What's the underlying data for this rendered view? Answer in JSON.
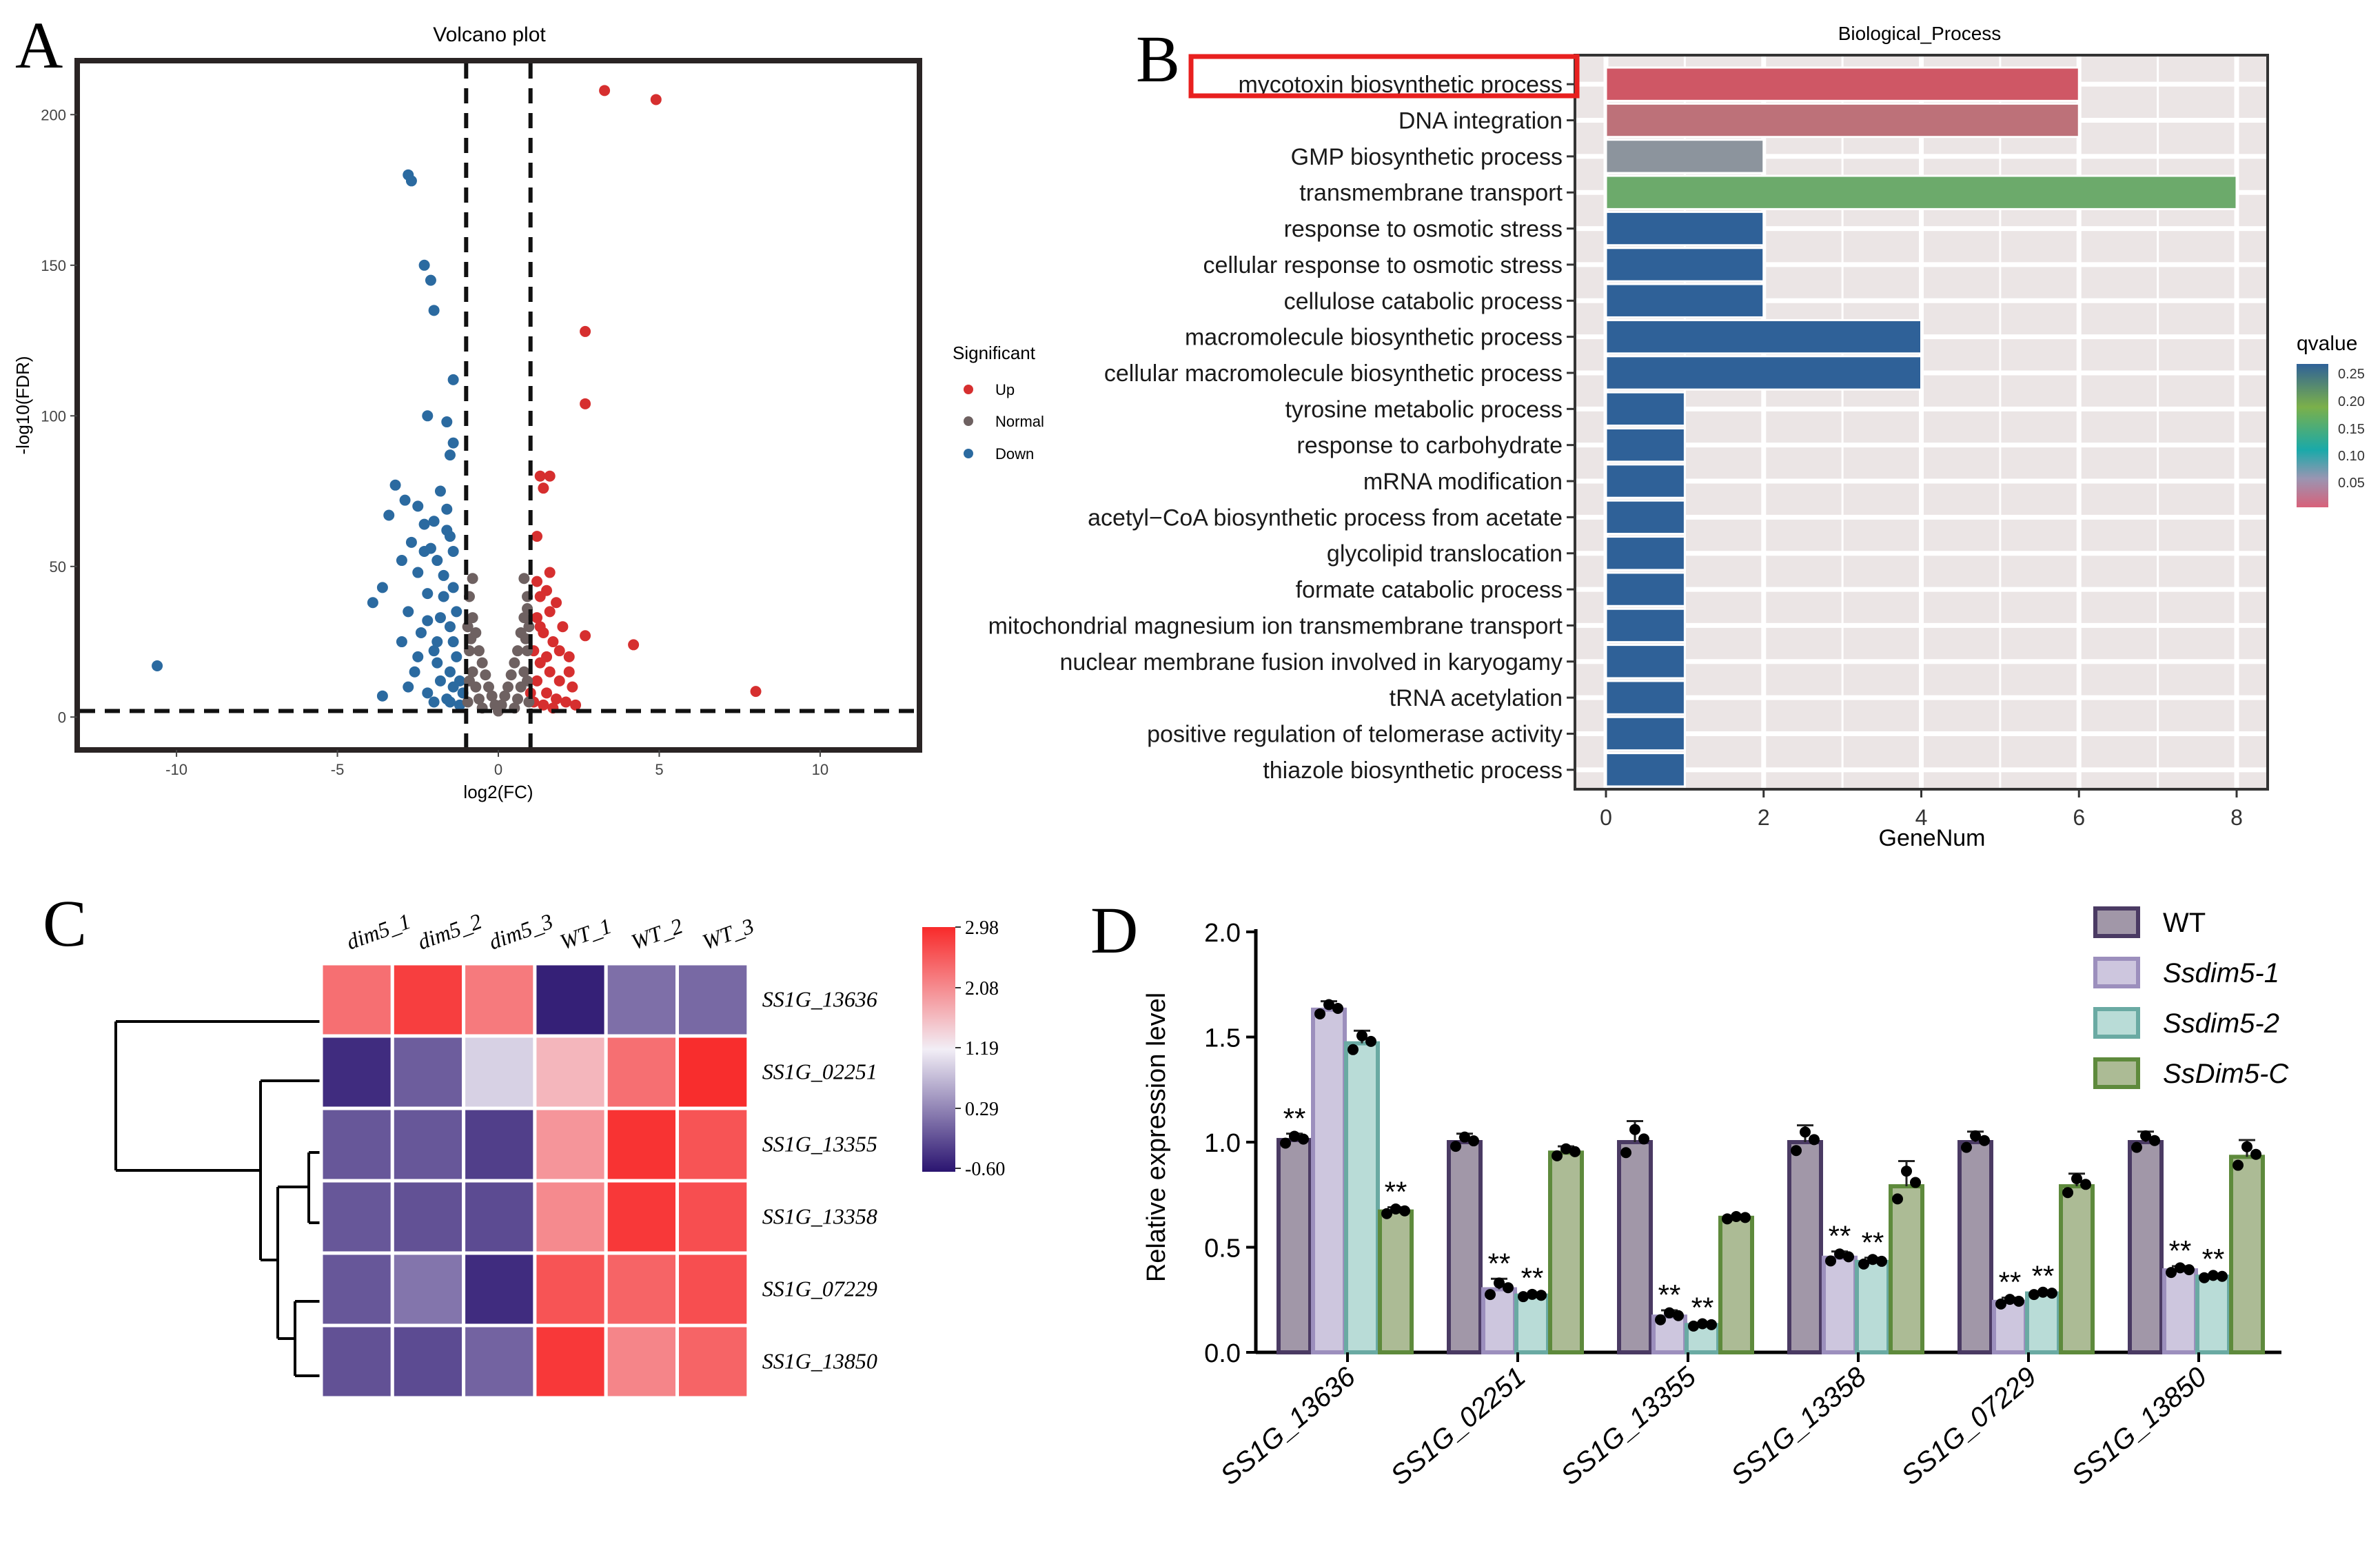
{
  "panels": [
    {
      "id": "A",
      "letter": "A",
      "title": "Volcano plot",
      "chart_data": {
        "type": "scatter",
        "title": "Volcano plot",
        "xlabel": "log2(FC)",
        "ylabel": "-log10(FDR)",
        "xlim": [
          -13,
          13
        ],
        "ylim": [
          -10,
          217
        ],
        "xticks": [
          -10,
          -5,
          0,
          5,
          10
        ],
        "yticks": [
          0,
          50,
          100,
          150,
          200
        ],
        "thresholds": {
          "x": [
            -1,
            1
          ],
          "y": 2
        },
        "legend": {
          "title": "Significant",
          "position": "right",
          "entries": [
            {
              "label": "Up",
              "color": "#d62f2f"
            },
            {
              "label": "Normal",
              "color": "#6e6161"
            },
            {
              "label": "Down",
              "color": "#2b6aa0"
            }
          ]
        },
        "series": [
          {
            "name": "Up",
            "color": "#d62f2f",
            "points": [
              [
                3.3,
                208
              ],
              [
                4.9,
                205
              ],
              [
                2.7,
                128
              ],
              [
                2.7,
                104
              ],
              [
                1.3,
                80
              ],
              [
                1.6,
                80
              ],
              [
                1.4,
                76
              ],
              [
                2.7,
                27
              ],
              [
                4.2,
                24
              ],
              [
                8,
                8.5
              ],
              [
                1.2,
                45
              ],
              [
                1.3,
                40
              ],
              [
                1.5,
                42
              ],
              [
                1.8,
                38
              ],
              [
                1.6,
                35
              ],
              [
                2.0,
                30
              ],
              [
                1.2,
                33
              ],
              [
                1.4,
                28
              ],
              [
                1.7,
                25
              ],
              [
                2.2,
                20
              ],
              [
                1.1,
                22
              ],
              [
                1.3,
                18
              ],
              [
                1.6,
                15
              ],
              [
                1.9,
                12
              ],
              [
                2.3,
                10
              ],
              [
                1.2,
                12
              ],
              [
                1.5,
                8
              ],
              [
                1.8,
                6
              ],
              [
                2.1,
                5
              ],
              [
                1.1,
                5
              ],
              [
                1.4,
                4
              ],
              [
                1.7,
                3
              ],
              [
                2.4,
                4
              ],
              [
                1.3,
                30
              ],
              [
                1.9,
                22
              ],
              [
                2.2,
                15
              ],
              [
                1.5,
                20
              ],
              [
                1.0,
                8
              ],
              [
                1.6,
                48
              ],
              [
                1.2,
                60
              ]
            ]
          },
          {
            "name": "Down",
            "color": "#2b6aa0",
            "points": [
              [
                -2.8,
                180
              ],
              [
                -2.7,
                178
              ],
              [
                -2.3,
                150
              ],
              [
                -2.1,
                145
              ],
              [
                -2.0,
                135
              ],
              [
                -1.4,
                112
              ],
              [
                -1.6,
                98
              ],
              [
                -2.2,
                100
              ],
              [
                -1.4,
                91
              ],
              [
                -1.5,
                87
              ],
              [
                -3.2,
                77
              ],
              [
                -1.8,
                75
              ],
              [
                -2.9,
                72
              ],
              [
                -2.5,
                70
              ],
              [
                -1.6,
                69
              ],
              [
                -2.0,
                65
              ],
              [
                -3.4,
                67
              ],
              [
                -2.3,
                64
              ],
              [
                -1.5,
                60
              ],
              [
                -2.7,
                58
              ],
              [
                -2.1,
                56
              ],
              [
                -1.4,
                55
              ],
              [
                -1.9,
                52
              ],
              [
                -3.0,
                52
              ],
              [
                -2.5,
                48
              ],
              [
                -1.7,
                47
              ],
              [
                -3.9,
                38
              ],
              [
                -3.6,
                43
              ],
              [
                -2.2,
                41
              ],
              [
                -1.4,
                43
              ],
              [
                -2.8,
                35
              ],
              [
                -1.8,
                33
              ],
              [
                -2.4,
                28
              ],
              [
                -1.5,
                30
              ],
              [
                -2.0,
                22
              ],
              [
                -1.3,
                20
              ],
              [
                -2.6,
                15
              ],
              [
                -1.8,
                12
              ],
              [
                -1.4,
                10
              ],
              [
                -2.2,
                8
              ],
              [
                -1.6,
                6
              ],
              [
                -1.2,
                4
              ],
              [
                -3.6,
                7
              ],
              [
                -10.6,
                17
              ],
              [
                -2.0,
                5
              ],
              [
                -1.5,
                15
              ],
              [
                -1.9,
                25
              ],
              [
                -2.5,
                20
              ],
              [
                -1.3,
                35
              ],
              [
                -2.2,
                32
              ],
              [
                -1.7,
                40
              ],
              [
                -1.4,
                25
              ],
              [
                -2.8,
                10
              ],
              [
                -1.9,
                18
              ],
              [
                -1.2,
                12
              ],
              [
                -3.0,
                25
              ],
              [
                -2.3,
                55
              ],
              [
                -1.6,
                62
              ],
              [
                -1.5,
                5
              ],
              [
                -1.1,
                8
              ]
            ]
          },
          {
            "name": "Normal",
            "color": "#6e6161",
            "points": [
              [
                -0.9,
                40
              ],
              [
                -0.8,
                33
              ],
              [
                -0.7,
                28
              ],
              [
                -0.6,
                22
              ],
              [
                -0.5,
                18
              ],
              [
                -0.4,
                14
              ],
              [
                -0.3,
                10
              ],
              [
                -0.2,
                7
              ],
              [
                -0.1,
                4
              ],
              [
                0,
                2
              ],
              [
                0.1,
                4
              ],
              [
                0.2,
                7
              ],
              [
                0.3,
                10
              ],
              [
                0.4,
                14
              ],
              [
                0.5,
                18
              ],
              [
                0.6,
                22
              ],
              [
                0.7,
                28
              ],
              [
                0.8,
                33
              ],
              [
                0.9,
                40
              ],
              [
                -0.9,
                22
              ],
              [
                -0.8,
                15
              ],
              [
                -0.7,
                10
              ],
              [
                -0.6,
                6
              ],
              [
                0.6,
                6
              ],
              [
                0.7,
                10
              ],
              [
                0.8,
                15
              ],
              [
                0.9,
                22
              ],
              [
                -0.95,
                30
              ],
              [
                0.95,
                30
              ],
              [
                -0.85,
                26
              ],
              [
                0.85,
                26
              ],
              [
                -0.9,
                12
              ],
              [
                0.9,
                12
              ],
              [
                -0.95,
                5
              ],
              [
                0.95,
                5
              ],
              [
                -0.5,
                3
              ],
              [
                0.5,
                3
              ],
              [
                -0.8,
                46
              ],
              [
                0.8,
                46
              ],
              [
                0.9,
                36
              ]
            ]
          }
        ]
      }
    },
    {
      "id": "B",
      "letter": "B",
      "title": "Biological_Process",
      "chart_data": {
        "type": "bar",
        "orientation": "horizontal",
        "title": "Biological_Process",
        "xlabel": "GeneNum",
        "ylabel": "",
        "xlim": [
          0,
          8.2
        ],
        "xticks": [
          0,
          2,
          4,
          6,
          8
        ],
        "highlighted_category": "mycotoxin biosynthetic process",
        "categories": [
          "mycotoxin biosynthetic process",
          "DNA integration",
          "GMP biosynthetic process",
          "transmembrane transport",
          "response to osmotic stress",
          "cellular response to osmotic stress",
          "cellulose catabolic process",
          "macromolecule biosynthetic process",
          "cellular macromolecule biosynthetic process",
          "tyrosine metabolic process",
          "response to carbohydrate",
          "mRNA modification",
          "acetyl−CoA biosynthetic process from acetate",
          "glycolipid translocation",
          "formate catabolic process",
          "mitochondrial magnesium ion transmembrane transport",
          "nuclear membrane fusion involved in karyogamy",
          "tRNA acetylation",
          "positive regulation of telomerase activity",
          "thiazole biosynthetic process"
        ],
        "values": [
          6,
          6,
          2,
          8,
          2,
          2,
          2,
          4,
          4,
          1,
          1,
          1,
          1,
          1,
          1,
          1,
          1,
          1,
          1,
          1
        ],
        "bar_colors": [
          "#cf5765",
          "#bd7179",
          "#8c949d",
          "#6caa6b",
          "#2f6198",
          "#2f6198",
          "#2f6198",
          "#2f6198",
          "#2f6198",
          "#2f6198",
          "#2f6198",
          "#2f6198",
          "#2f6198",
          "#2f6198",
          "#2f6198",
          "#2f6198",
          "#2f6198",
          "#2f6198",
          "#2f6198",
          "#2f6198"
        ],
        "colorbar": {
          "title": "qvalue",
          "ticks": [
            "0.25",
            "0.20",
            "0.15",
            "0.10",
            "0.05"
          ],
          "colors": [
            "#2f6198",
            "#7bb04a",
            "#1aa9a9",
            "#9a95b2",
            "#d8617a"
          ]
        }
      }
    },
    {
      "id": "C",
      "letter": "C",
      "chart_data": {
        "type": "heatmap",
        "columns": [
          "dim5_1",
          "dim5_2",
          "dim5_3",
          "WT_1",
          "WT_2",
          "WT_3"
        ],
        "rows": [
          "SS1G_13636",
          "SS1G_02251",
          "SS1G_13355",
          "SS1G_13358",
          "SS1G_07229",
          "SS1G_13850"
        ],
        "values": [
          [
            2.35,
            2.8,
            2.25,
            -0.5,
            0.15,
            0.1
          ],
          [
            -0.4,
            0.0,
            0.95,
            1.7,
            2.35,
            2.95
          ],
          [
            -0.05,
            -0.05,
            -0.25,
            2.0,
            2.9,
            2.6
          ],
          [
            -0.05,
            -0.1,
            -0.15,
            2.1,
            2.85,
            2.65
          ],
          [
            -0.05,
            0.2,
            -0.4,
            2.6,
            2.45,
            2.65
          ],
          [
            -0.1,
            -0.15,
            0.05,
            2.85,
            2.15,
            2.45
          ]
        ],
        "colorbar": {
          "ticks": [
            "2.98",
            "2.08",
            "1.19",
            "0.29",
            "-0.60"
          ],
          "min": -0.6,
          "max": 2.98
        }
      }
    },
    {
      "id": "D",
      "letter": "D",
      "chart_data": {
        "type": "bar",
        "ylabel": "Relative expression level",
        "ylim": [
          0,
          2.0
        ],
        "yticks": [
          "0.0",
          "0.5",
          "1.0",
          "1.5",
          "2.0"
        ],
        "categories": [
          "SS1G_13636",
          "SS1G_02251",
          "SS1G_13355",
          "SS1G_13358",
          "SS1G_07229",
          "SS1G_13850"
        ],
        "series": [
          {
            "name": "WT",
            "fill": "#a197a8",
            "edge": "#4a3a63",
            "values": [
              1.01,
              1.0,
              1.0,
              1.0,
              1.0,
              1.0
            ],
            "errors": [
              0.03,
              0.04,
              0.1,
              0.08,
              0.05,
              0.05
            ],
            "sig": [
              "**",
              "",
              "",
              "",
              "",
              ""
            ]
          },
          {
            "name": "Ssdim5-1",
            "fill": "#cdc6de",
            "edge": "#9c8fbd",
            "values": [
              1.63,
              0.3,
              0.17,
              0.45,
              0.24,
              0.39
            ],
            "errors": [
              0.04,
              0.05,
              0.03,
              0.03,
              0.02,
              0.02
            ],
            "sig": [
              "",
              "**",
              "**",
              "**",
              "**",
              "**"
            ]
          },
          {
            "name": "Ssdim5-2",
            "fill": "#b9dcd7",
            "edge": "#6aaaa3",
            "values": [
              1.47,
              0.27,
              0.13,
              0.43,
              0.28,
              0.36
            ],
            "errors": [
              0.06,
              0.01,
              0.01,
              0.02,
              0.01,
              0.01
            ],
            "sig": [
              "",
              "**",
              "**",
              "**",
              "**",
              "**"
            ]
          },
          {
            "name": "SsDim5-C",
            "fill": "#acbb95",
            "edge": "#5e8a3c",
            "values": [
              0.67,
              0.95,
              0.64,
              0.79,
              0.79,
              0.93
            ],
            "errors": [
              0.02,
              0.03,
              0.01,
              0.12,
              0.06,
              0.08
            ],
            "sig": [
              "**",
              "",
              "",
              "",
              "",
              ""
            ]
          }
        ]
      }
    }
  ]
}
